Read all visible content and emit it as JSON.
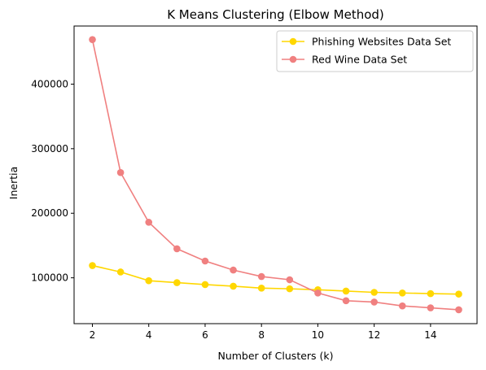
{
  "chart_data": {
    "type": "line",
    "title": "K Means Clustering (Elbow Method)",
    "xlabel": "Number of Clusters (k)",
    "ylabel": "Inertia",
    "x": [
      2,
      3,
      4,
      5,
      6,
      7,
      8,
      9,
      10,
      11,
      12,
      13,
      14,
      15
    ],
    "xlim": [
      1.35,
      15.65
    ],
    "ylim": [
      29000,
      490000
    ],
    "xticks": [
      2,
      4,
      6,
      8,
      10,
      12,
      14
    ],
    "yticks": [
      100000,
      200000,
      300000,
      400000
    ],
    "grid": false,
    "legend_position": "top-right",
    "series": [
      {
        "name": "Phishing Websites Data Set",
        "color": "#ffd700",
        "values": [
          119000,
          109000,
          95500,
          92500,
          89500,
          87000,
          84000,
          83000,
          81500,
          79500,
          77500,
          76500,
          75500,
          74800
        ]
      },
      {
        "name": "Red Wine Data Set",
        "color": "#f08080",
        "values": [
          469000,
          263000,
          186000,
          145000,
          126000,
          112000,
          102000,
          97000,
          76500,
          64500,
          62500,
          56500,
          53500,
          50500
        ]
      }
    ]
  }
}
